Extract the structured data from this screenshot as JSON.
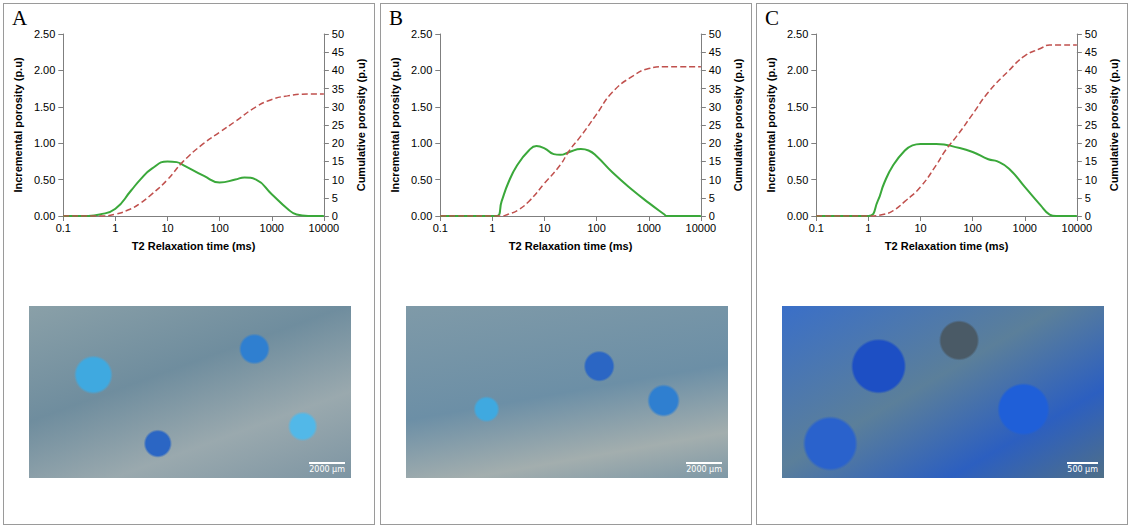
{
  "chart_data": [
    {
      "type": "line",
      "panel_label": "A",
      "x_label": "T2 Relaxation time (ms)",
      "y_label": "Incremental porosity (p.u)",
      "y2_label": "Cumulative porosity (p.u)",
      "log": "x",
      "grid": false,
      "xlim": [
        0.1,
        10000
      ],
      "xticks": [
        0.1,
        1,
        10,
        100,
        1000,
        10000
      ],
      "ylim": [
        0,
        2.5
      ],
      "yticks": [
        {
          "value": 0,
          "label": "0.00"
        },
        {
          "value": 0.5,
          "label": "0.50"
        },
        {
          "value": 1,
          "label": "1.00"
        },
        {
          "value": 1.5,
          "label": "1.50"
        },
        {
          "value": 2,
          "label": "2.00"
        },
        {
          "value": 2.5,
          "label": "2.50"
        }
      ],
      "y2lim": [
        0,
        50
      ],
      "y2ticks": [
        0,
        5,
        10,
        15,
        20,
        25,
        30,
        35,
        40,
        45,
        50
      ],
      "annotations": [
        "2000 μm"
      ],
      "series": [
        {
          "axis": "y",
          "color": "#3aa83a",
          "line_style": "solid",
          "x": [
            0.1,
            0.3,
            0.5,
            1,
            2,
            3,
            5,
            10,
            15,
            20,
            50,
            100,
            200,
            300,
            500,
            1000,
            2000,
            3000,
            5000,
            10000
          ],
          "values": [
            0,
            0,
            0.02,
            0.1,
            0.35,
            0.5,
            0.65,
            0.75,
            0.74,
            0.7,
            0.55,
            0.46,
            0.5,
            0.53,
            0.5,
            0.3,
            0.1,
            0.02,
            0,
            0
          ]
        },
        {
          "axis": "y2",
          "color": "#c0504d",
          "line_style": "dashed",
          "x": [
            0.1,
            0.5,
            1,
            2,
            3,
            5,
            10,
            20,
            50,
            100,
            200,
            500,
            1000,
            2000,
            5000,
            10000
          ],
          "values": [
            0,
            0,
            0.5,
            2,
            3.5,
            6,
            10,
            15,
            20,
            23,
            26,
            30,
            32,
            33,
            33.5,
            33.5
          ]
        }
      ]
    },
    {
      "type": "line",
      "panel_label": "B",
      "x_label": "T2 Relaxation time (ms)",
      "y_label": "Incremental porosity (p.u)",
      "y2_label": "Cumulative porosity (p.u)",
      "log": "x",
      "grid": false,
      "xlim": [
        0.1,
        10000
      ],
      "xticks": [
        0.1,
        1,
        10,
        100,
        1000,
        10000
      ],
      "ylim": [
        0,
        2.5
      ],
      "yticks": [
        {
          "value": 0,
          "label": "0.00"
        },
        {
          "value": 0.5,
          "label": "0.50"
        },
        {
          "value": 1,
          "label": "1.00"
        },
        {
          "value": 1.5,
          "label": "1.50"
        },
        {
          "value": 2,
          "label": "2.00"
        },
        {
          "value": 2.5,
          "label": "2.50"
        }
      ],
      "y2lim": [
        0,
        50
      ],
      "y2ticks": [
        0,
        5,
        10,
        15,
        20,
        25,
        30,
        35,
        40,
        45,
        50
      ],
      "annotations": [
        "2000 μm"
      ],
      "series": [
        {
          "axis": "y",
          "color": "#3aa83a",
          "line_style": "solid",
          "x": [
            0.1,
            1.2,
            1.5,
            2,
            3,
            5,
            7,
            10,
            15,
            20,
            30,
            50,
            70,
            100,
            200,
            500,
            1000,
            2000,
            2200,
            10000
          ],
          "values": [
            0,
            0,
            0.2,
            0.45,
            0.7,
            0.9,
            0.96,
            0.93,
            0.85,
            0.84,
            0.88,
            0.92,
            0.9,
            0.82,
            0.6,
            0.35,
            0.18,
            0.02,
            0,
            0
          ]
        },
        {
          "axis": "y2",
          "color": "#c0504d",
          "line_style": "dashed",
          "x": [
            0.1,
            1.5,
            2,
            3,
            5,
            10,
            20,
            30,
            50,
            100,
            200,
            500,
            1000,
            2000,
            10000
          ],
          "values": [
            0,
            0,
            0.5,
            1.5,
            4,
            9,
            14,
            18,
            22,
            28,
            34,
            38.5,
            40.5,
            41,
            41
          ]
        }
      ]
    },
    {
      "type": "line",
      "panel_label": "C",
      "x_label": "T2 Relaxation time (ms)",
      "y_label": "Incremental porosity (p.u)",
      "y2_label": "Cumulative porosity (p.u)",
      "log": "x",
      "grid": false,
      "xlim": [
        0.1,
        10000
      ],
      "xticks": [
        0.1,
        1,
        10,
        100,
        1000,
        10000
      ],
      "ylim": [
        0,
        2.5
      ],
      "yticks": [
        {
          "value": 0,
          "label": "0.00"
        },
        {
          "value": 0.5,
          "label": "0.50"
        },
        {
          "value": 1,
          "label": "1.00"
        },
        {
          "value": 1.5,
          "label": "1.50"
        },
        {
          "value": 2,
          "label": "2.00"
        },
        {
          "value": 2.5,
          "label": "2.50"
        }
      ],
      "y2lim": [
        0,
        50
      ],
      "y2ticks": [
        0,
        5,
        10,
        15,
        20,
        25,
        30,
        35,
        40,
        45,
        50
      ],
      "annotations": [
        "500 μm"
      ],
      "series": [
        {
          "axis": "y",
          "color": "#3aa83a",
          "line_style": "solid",
          "x": [
            0.1,
            1,
            1.5,
            2,
            3,
            5,
            7,
            10,
            20,
            30,
            40,
            100,
            200,
            300,
            500,
            1000,
            2000,
            3000,
            4000,
            10000
          ],
          "values": [
            0,
            0,
            0.2,
            0.45,
            0.7,
            0.9,
            0.97,
            0.99,
            0.99,
            0.98,
            0.96,
            0.88,
            0.78,
            0.75,
            0.65,
            0.4,
            0.15,
            0.02,
            0,
            0
          ]
        },
        {
          "axis": "y2",
          "color": "#c0504d",
          "line_style": "dashed",
          "x": [
            0.1,
            1,
            2,
            3,
            5,
            10,
            20,
            30,
            50,
            100,
            200,
            500,
            1000,
            2000,
            3000,
            10000
          ],
          "values": [
            0,
            0,
            0.5,
            1.5,
            4,
            8,
            14,
            18,
            22,
            28,
            34,
            40,
            44,
            46,
            47,
            47
          ]
        }
      ]
    }
  ]
}
